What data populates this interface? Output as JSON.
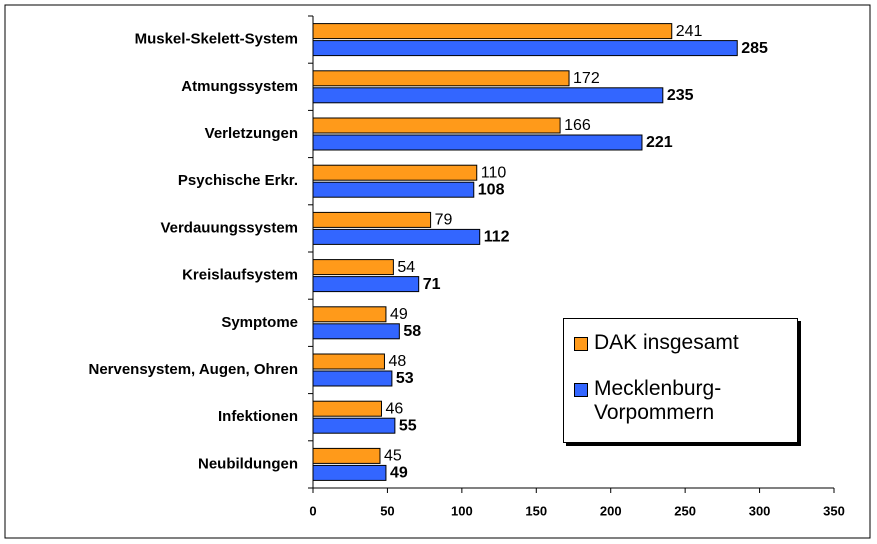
{
  "chart_data": {
    "type": "bar",
    "orientation": "horizontal",
    "categories": [
      "Muskel-Skelett-System",
      "Atmungssystem",
      "Verletzungen",
      "Psychische Erkr.",
      "Verdauungssystem",
      "Kreislaufsystem",
      "Symptome",
      "Nervensystem, Augen, Ohren",
      "Infektionen",
      "Neubildungen"
    ],
    "series": [
      {
        "name": "DAK insgesamt",
        "color": "#ff9a1a",
        "values": [
          241,
          172,
          166,
          110,
          79,
          54,
          49,
          48,
          46,
          45
        ]
      },
      {
        "name": "Mecklenburg-Vorpommern",
        "color": "#3366ff",
        "values": [
          285,
          235,
          221,
          108,
          112,
          71,
          58,
          53,
          55,
          49
        ]
      }
    ],
    "xlim": [
      0,
      350
    ],
    "xticks": [
      0,
      50,
      100,
      150,
      200,
      250,
      300,
      350
    ],
    "grid": false,
    "legend": "lower right"
  }
}
